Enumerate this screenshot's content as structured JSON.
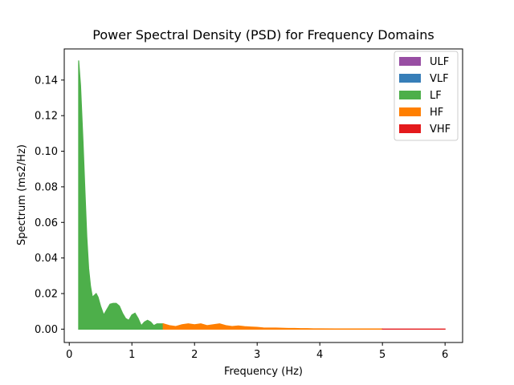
{
  "chart_data": {
    "type": "area",
    "title": "Power Spectral Density (PSD) for Frequency Domains",
    "xlabel": "Frequency (Hz)",
    "ylabel": "Spectrum (ms2/Hz)",
    "xlim": [
      -0.08,
      6.28
    ],
    "ylim": [
      -0.0075,
      0.1575
    ],
    "xticks": [
      0,
      1,
      2,
      3,
      4,
      5,
      6
    ],
    "xtick_labels": [
      "0",
      "1",
      "2",
      "3",
      "4",
      "5",
      "6"
    ],
    "yticks": [
      0.0,
      0.02,
      0.04,
      0.06,
      0.08,
      0.1,
      0.12,
      0.14
    ],
    "ytick_labels": [
      "0.00",
      "0.02",
      "0.04",
      "0.06",
      "0.08",
      "0.10",
      "0.12",
      "0.14"
    ],
    "grid": false,
    "legend_position": "top-right",
    "legend": [
      {
        "label": "ULF",
        "color": "#984ea3"
      },
      {
        "label": "VLF",
        "color": "#377eb8"
      },
      {
        "label": "LF",
        "color": "#4daf4a"
      },
      {
        "label": "HF",
        "color": "#ff7f00"
      },
      {
        "label": "VHF",
        "color": "#e41a1c"
      }
    ],
    "series": [
      {
        "name": "LF",
        "color": "#4daf4a",
        "x": [
          0.15,
          0.18,
          0.22,
          0.25,
          0.28,
          0.31,
          0.34,
          0.37,
          0.4,
          0.43,
          0.46,
          0.5,
          0.55,
          0.6,
          0.65,
          0.7,
          0.75,
          0.8,
          0.85,
          0.9,
          0.95,
          1.0,
          1.05,
          1.1,
          1.15,
          1.2,
          1.25,
          1.3,
          1.35,
          1.4,
          1.45,
          1.5
        ],
        "y": [
          0.151,
          0.137,
          0.105,
          0.078,
          0.052,
          0.034,
          0.024,
          0.018,
          0.019,
          0.02,
          0.018,
          0.013,
          0.008,
          0.011,
          0.014,
          0.0145,
          0.0145,
          0.013,
          0.009,
          0.006,
          0.005,
          0.008,
          0.009,
          0.006,
          0.002,
          0.004,
          0.005,
          0.004,
          0.002,
          0.003,
          0.003,
          0.003
        ]
      },
      {
        "name": "HF",
        "color": "#ff7f00",
        "x": [
          1.5,
          1.6,
          1.7,
          1.8,
          1.9,
          2.0,
          2.1,
          2.2,
          2.3,
          2.4,
          2.5,
          2.6,
          2.7,
          2.8,
          2.9,
          3.0,
          3.1,
          3.2,
          3.3,
          3.4,
          3.5,
          3.6,
          3.7,
          3.8,
          3.9,
          4.0,
          4.25,
          4.5,
          4.75,
          5.0
        ],
        "y": [
          0.003,
          0.002,
          0.0015,
          0.0025,
          0.003,
          0.0025,
          0.003,
          0.002,
          0.0025,
          0.003,
          0.002,
          0.0015,
          0.0018,
          0.0014,
          0.0012,
          0.001,
          0.0007,
          0.0006,
          0.0006,
          0.0005,
          0.0004,
          0.0004,
          0.0003,
          0.0003,
          0.0002,
          0.0002,
          0.0001,
          0.0001,
          0.0001,
          0.0001
        ]
      },
      {
        "name": "VHF",
        "color": "#e41a1c",
        "x": [
          5.0,
          5.5,
          6.0
        ],
        "y": [
          5e-05,
          5e-05,
          5e-05
        ]
      }
    ]
  }
}
